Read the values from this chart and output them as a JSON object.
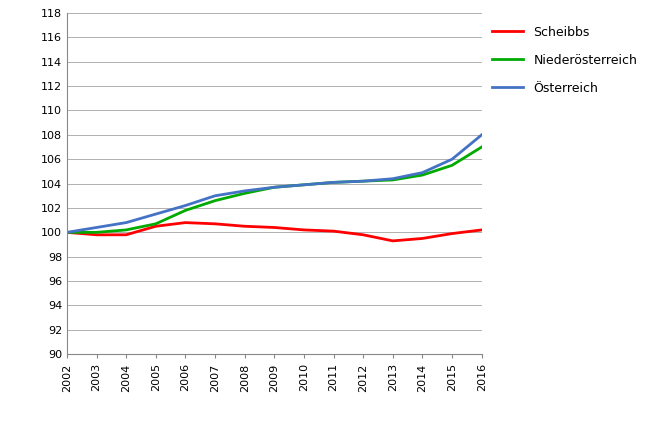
{
  "years": [
    2002,
    2003,
    2004,
    2005,
    2006,
    2007,
    2008,
    2009,
    2010,
    2011,
    2012,
    2013,
    2014,
    2015,
    2016
  ],
  "scheibbs": [
    100.0,
    99.8,
    99.8,
    100.5,
    100.8,
    100.7,
    100.5,
    100.4,
    100.2,
    100.1,
    99.8,
    99.3,
    99.5,
    99.9,
    100.2
  ],
  "niederoesterreich": [
    100.0,
    100.0,
    100.2,
    100.7,
    101.8,
    102.6,
    103.2,
    103.7,
    103.9,
    104.1,
    104.2,
    104.3,
    104.7,
    105.5,
    107.0
  ],
  "oesterreich": [
    100.0,
    100.4,
    100.8,
    101.5,
    102.2,
    103.0,
    103.4,
    103.7,
    103.9,
    104.1,
    104.2,
    104.4,
    104.9,
    106.0,
    108.0
  ],
  "color_scheibbs": "#ff0000",
  "color_niederoesterreich": "#00aa00",
  "color_oesterreich": "#4472c4",
  "ylim": [
    90,
    118
  ],
  "yticks": [
    90,
    92,
    94,
    96,
    98,
    100,
    102,
    104,
    106,
    108,
    110,
    112,
    114,
    116,
    118
  ],
  "legend_labels": [
    "Scheibbs",
    "Niederösterreich",
    "Österreich"
  ],
  "line_width": 2.0,
  "bg_color": "#ffffff",
  "grid_color": "#b0b0b0"
}
